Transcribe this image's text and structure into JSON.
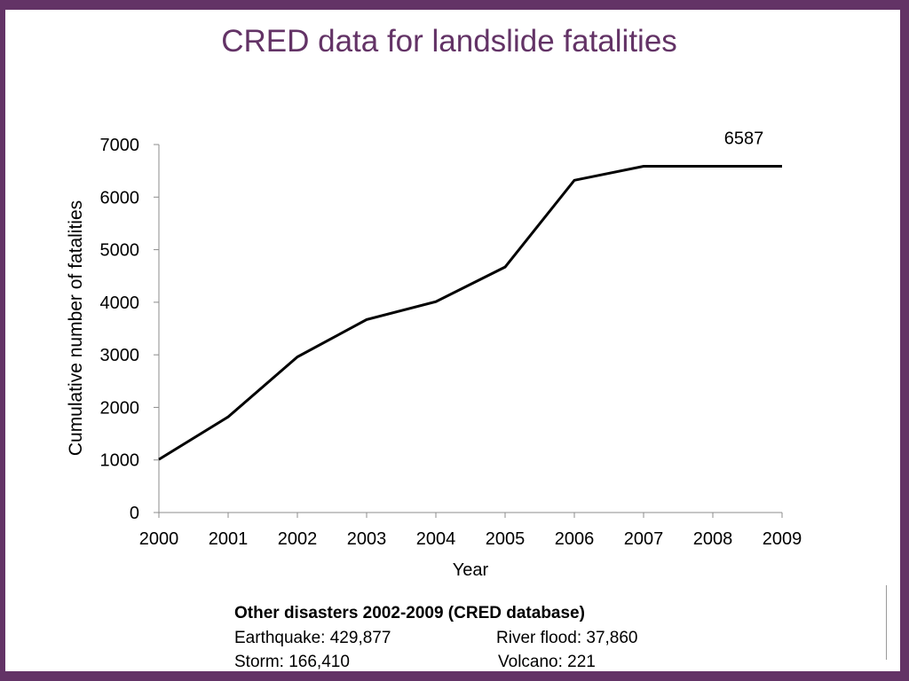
{
  "slide": {
    "title": "CRED data for landslide fatalities",
    "frame_color": "#633366"
  },
  "chart_data": {
    "type": "line",
    "title": "CRED data for landslide fatalities",
    "xlabel": "Year",
    "ylabel": "Cumulative number of fatalities",
    "x": [
      "2000",
      "2001",
      "2002",
      "2003",
      "2004",
      "2005",
      "2006",
      "2007",
      "2008",
      "2009"
    ],
    "series": [
      {
        "name": "Cumulative landslide fatalities",
        "color": "#000000",
        "values": [
          1010,
          1820,
          2960,
          3670,
          4010,
          4670,
          6320,
          6587,
          6587,
          6587
        ]
      }
    ],
    "ylim": [
      0,
      7000
    ],
    "yticks": [
      0,
      1000,
      2000,
      3000,
      4000,
      5000,
      6000,
      7000
    ],
    "grid": false,
    "legend": "none",
    "annotations": [
      {
        "text": "6587",
        "x": "2008",
        "y": 6587
      }
    ]
  },
  "notes": {
    "heading": "Other disasters 2002-2009 (CRED database)",
    "rows": [
      {
        "left": "Earthquake: 429,877",
        "right": "River flood: 37,860"
      },
      {
        "left": "Storm: 166,410",
        "right": "Volcano: 221"
      }
    ]
  }
}
